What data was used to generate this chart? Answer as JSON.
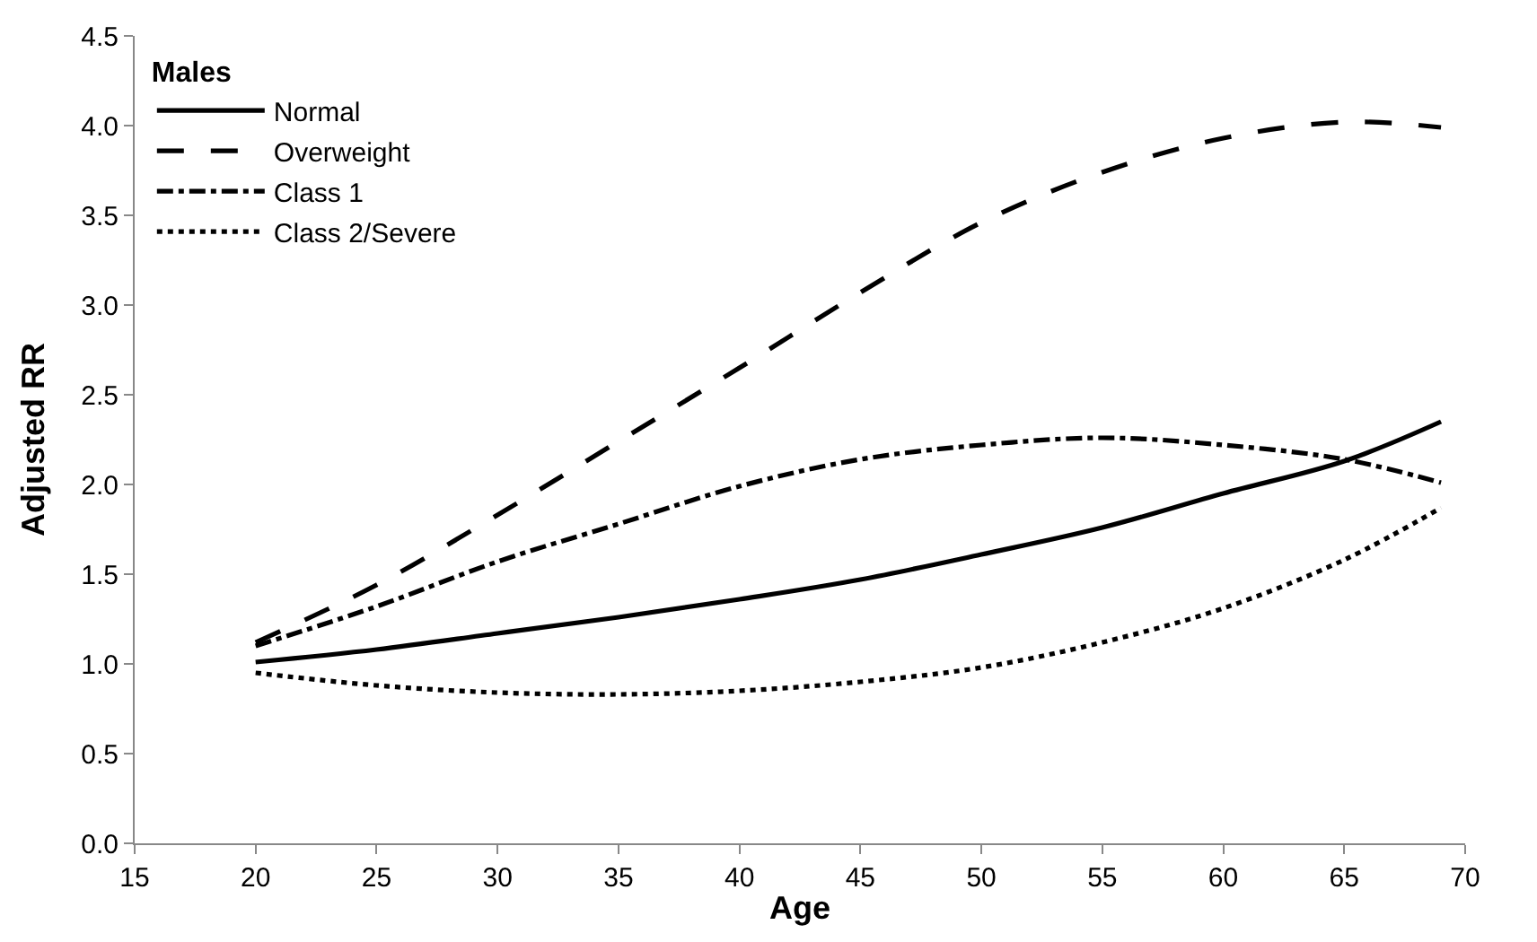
{
  "chart_data": {
    "type": "line",
    "xlabel": "Age",
    "ylabel": "Adjusted RR",
    "legend_title": "Males",
    "x": [
      20,
      25,
      30,
      35,
      40,
      45,
      50,
      55,
      60,
      65,
      69
    ],
    "series": [
      {
        "name": "Normal",
        "color": "#000000",
        "line_style": "solid",
        "values": [
          1.01,
          1.08,
          1.17,
          1.26,
          1.36,
          1.47,
          1.61,
          1.76,
          1.95,
          2.13,
          2.35
        ]
      },
      {
        "name": "Overweight",
        "color": "#000000",
        "line_style": "dashed",
        "values": [
          1.12,
          1.44,
          1.83,
          2.24,
          2.65,
          3.07,
          3.46,
          3.74,
          3.93,
          4.02,
          3.99
        ]
      },
      {
        "name": "Class 1",
        "color": "#000000",
        "line_style": "dashdot",
        "values": [
          1.1,
          1.32,
          1.57,
          1.78,
          1.99,
          2.14,
          2.22,
          2.26,
          2.22,
          2.14,
          2.01
        ]
      },
      {
        "name": "Class 2/Severe",
        "color": "#000000",
        "line_style": "dotted",
        "values": [
          0.95,
          0.88,
          0.84,
          0.83,
          0.85,
          0.9,
          0.98,
          1.12,
          1.31,
          1.58,
          1.87
        ]
      }
    ],
    "xlim": [
      15,
      70
    ],
    "xticks": [
      15,
      20,
      25,
      30,
      35,
      40,
      45,
      50,
      55,
      60,
      65,
      70
    ],
    "ylim": [
      0,
      4.5
    ],
    "yticks": [
      {
        "value": 0,
        "label": "0.0"
      },
      {
        "value": 0.5,
        "label": "0.5"
      },
      {
        "value": 1,
        "label": "1.0"
      },
      {
        "value": 1.5,
        "label": "1.5"
      },
      {
        "value": 2,
        "label": "2.0"
      },
      {
        "value": 2.5,
        "label": "2.5"
      },
      {
        "value": 3,
        "label": "3.0"
      },
      {
        "value": 3.5,
        "label": "3.5"
      },
      {
        "value": 4,
        "label": "4.0"
      },
      {
        "value": 4.5,
        "label": "4.5"
      }
    ],
    "legend": "top left",
    "marker": "none"
  }
}
